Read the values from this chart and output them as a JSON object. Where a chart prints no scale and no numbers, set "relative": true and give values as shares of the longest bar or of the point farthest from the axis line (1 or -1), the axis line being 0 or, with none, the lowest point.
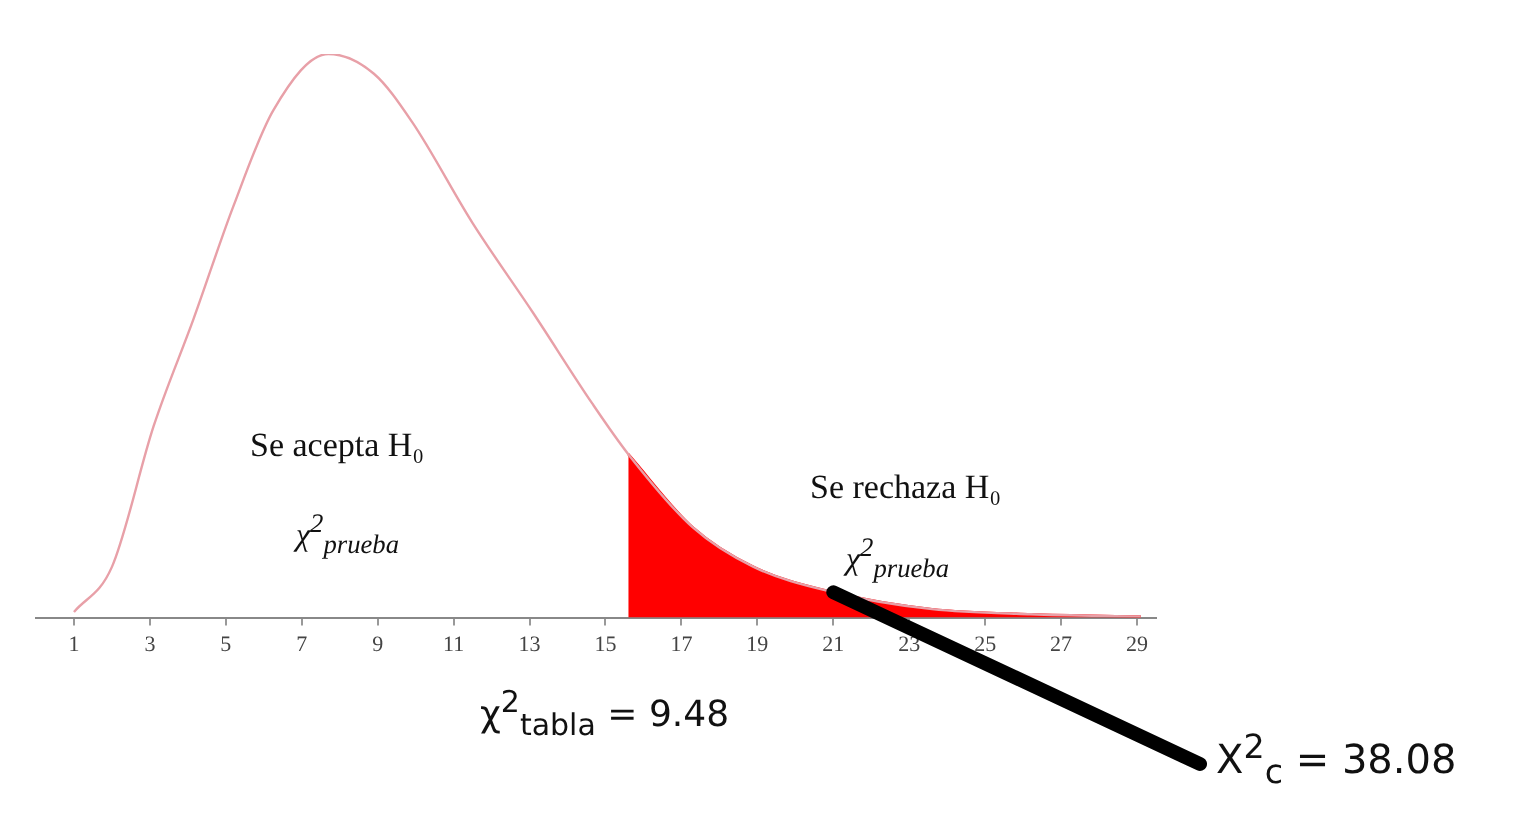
{
  "chart_data": {
    "type": "line",
    "relative": true,
    "grid": false,
    "legend": false,
    "marker": "none",
    "xlim": [
      0,
      29.5
    ],
    "xticks": [
      1,
      3,
      5,
      7,
      9,
      11,
      13,
      15,
      17,
      19,
      21,
      23,
      25,
      27,
      29
    ],
    "series": [
      {
        "color": "#e8a0a8",
        "x": [
          1,
          2,
          3.1,
          4.15,
          5.2,
          6.25,
          7.7,
          8.9,
          9.9,
          11.5,
          13.1,
          14.65,
          15.6,
          17.3,
          18.9,
          21,
          23.6,
          26.2,
          29.1
        ],
        "values": [
          0.01,
          0.09,
          0.34,
          0.53,
          0.73,
          0.9,
          1,
          0.965,
          0.88,
          0.7,
          0.54,
          0.38,
          0.29,
          0.16,
          0.09,
          0.045,
          0.015,
          0.006,
          0.002
        ]
      },
      {
        "type": "area",
        "color": "#ff0000",
        "x": [
          15.6,
          17.3,
          18.9,
          21,
          23.6,
          26.2,
          29.1
        ],
        "values": [
          0.29,
          0.16,
          0.09,
          0.045,
          0.015,
          0.006,
          0.002
        ]
      }
    ],
    "annotations": [
      "Se acepta H₀",
      "χ$^{2}$$_{prueba}$",
      "Se rechaza H₀",
      "χ$^{2}$$_{prueba}$",
      "χ$^{2}$$_{tabla}$ = 9.48",
      {
        "text": "X$^{2}$$_{c}$ = 38.08",
        "x": 21,
        "y": 0.045
      }
    ]
  }
}
